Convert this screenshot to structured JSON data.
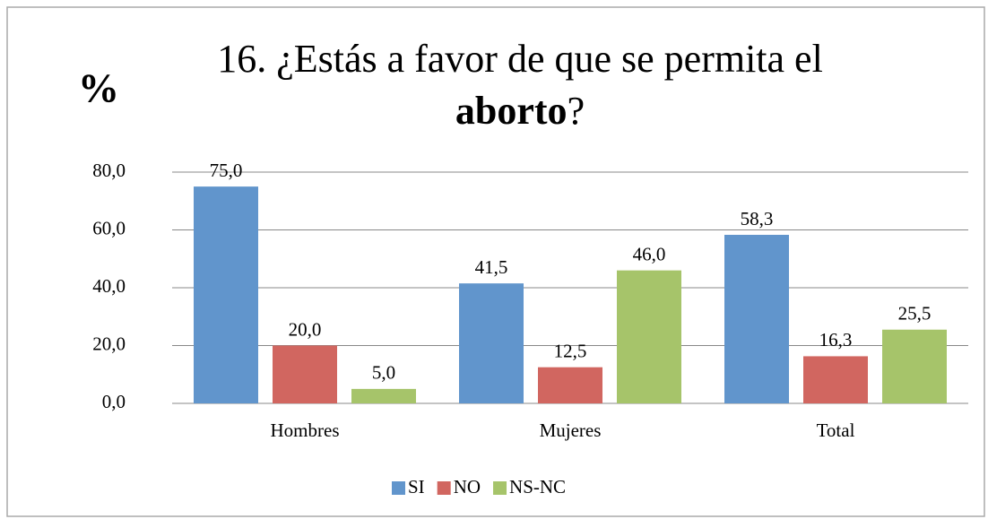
{
  "chart_data": {
    "type": "bar",
    "title": "16. ¿Estás a favor de que se permita el",
    "title_bold": "aborto",
    "title_end": "?",
    "y_label": "%",
    "categories": [
      "Hombres",
      "Mujeres",
      "Total"
    ],
    "series": [
      {
        "name": "SI",
        "color": "#6195cc",
        "values": [
          75.0,
          41.5,
          58.3
        ],
        "value_labels": [
          "75,0",
          "41,5",
          "58,3"
        ]
      },
      {
        "name": "NO",
        "color": "#d16660",
        "values": [
          20.0,
          12.5,
          16.3
        ],
        "value_labels": [
          "20,0",
          "12,5",
          "16,3"
        ]
      },
      {
        "name": "NS-NC",
        "color": "#a6c46a",
        "values": [
          5.0,
          46.0,
          25.5
        ],
        "value_labels": [
          "5,0",
          "46,0",
          "25,5"
        ]
      }
    ],
    "ylim": [
      0,
      80
    ],
    "yticks": [
      {
        "value": 0,
        "label": "0,0"
      },
      {
        "value": 20,
        "label": "20,0"
      },
      {
        "value": 40,
        "label": "40,0"
      },
      {
        "value": 60,
        "label": "60,0"
      },
      {
        "value": 80,
        "label": "80,0"
      }
    ],
    "grid": true,
    "legend": "bottom"
  }
}
